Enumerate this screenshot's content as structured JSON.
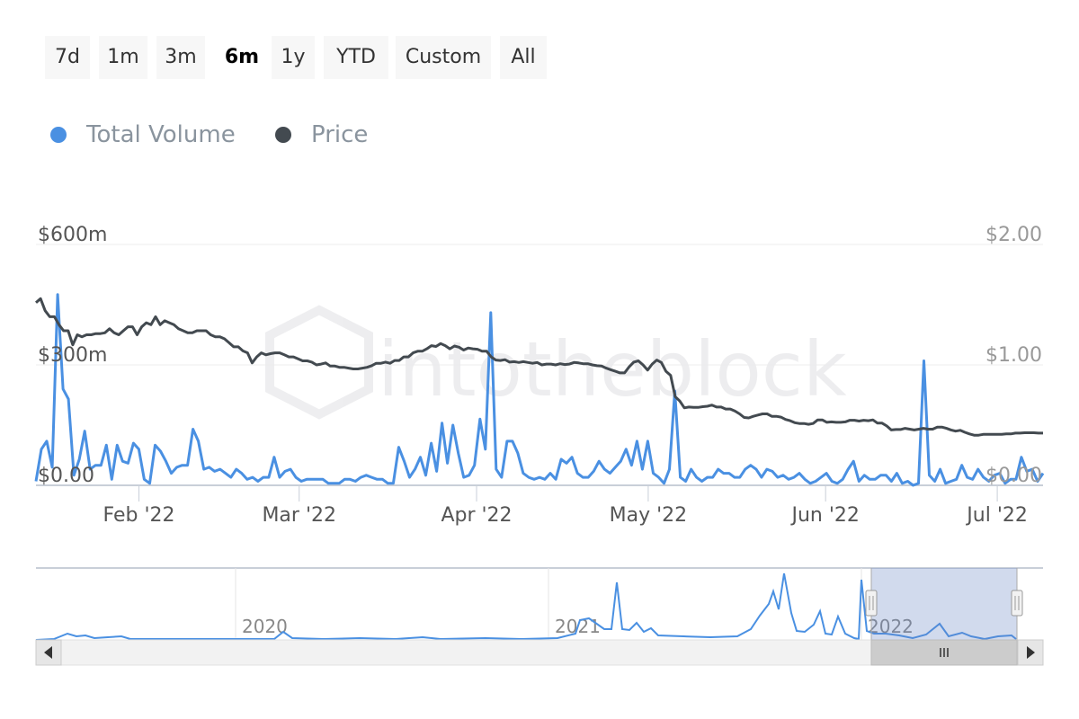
{
  "range_selector": {
    "buttons": [
      {
        "label": "7d",
        "selected": false
      },
      {
        "label": "1m",
        "selected": false
      },
      {
        "label": "3m",
        "selected": false
      },
      {
        "label": "6m",
        "selected": true
      },
      {
        "label": "1y",
        "selected": false
      },
      {
        "label": "YTD",
        "selected": false
      },
      {
        "label": "Custom",
        "selected": false
      },
      {
        "label": "All",
        "selected": false
      }
    ]
  },
  "legend": {
    "items": [
      {
        "label": "Total Volume",
        "color": "#4a90e2",
        "icon": "circle-icon"
      },
      {
        "label": "Price",
        "color": "#434a50",
        "icon": "circle-icon"
      }
    ]
  },
  "watermark": "intotheblock",
  "chart_data": {
    "type": "line",
    "x_range": [
      "2022-01-14",
      "2022-07-09"
    ],
    "left_axis": {
      "ticks": [
        "$0.00",
        "$300m",
        "$600m"
      ],
      "range": [
        0,
        600
      ],
      "unit": "$m"
    },
    "right_axis": {
      "ticks": [
        "$0.00",
        "$1.00",
        "$2.00"
      ],
      "range": [
        0,
        2
      ]
    },
    "x_ticks": [
      "Feb '22",
      "Mar '22",
      "Apr '22",
      "May '22",
      "Jun '22",
      "Jul '22"
    ],
    "grid": true,
    "legend_position": "top-left",
    "series": [
      {
        "name": "Total Volume",
        "axis": "left",
        "color": "#4a90e2",
        "values": [
          10,
          90,
          110,
          45,
          475,
          240,
          215,
          25,
          65,
          135,
          40,
          50,
          50,
          100,
          15,
          100,
          60,
          55,
          105,
          90,
          15,
          5,
          100,
          85,
          60,
          30,
          45,
          50,
          50,
          140,
          110,
          40,
          45,
          35,
          40,
          30,
          20,
          40,
          30,
          15,
          20,
          10,
          20,
          20,
          70,
          20,
          35,
          40,
          20,
          10,
          15,
          15,
          15,
          15,
          5,
          5,
          5,
          15,
          15,
          10,
          20,
          25,
          20,
          15,
          15,
          5,
          5,
          95,
          60,
          20,
          40,
          70,
          25,
          105,
          35,
          155,
          55,
          150,
          80,
          20,
          25,
          50,
          165,
          90,
          430,
          40,
          20,
          110,
          110,
          80,
          30,
          20,
          15,
          20,
          15,
          30,
          15,
          65,
          55,
          70,
          30,
          20,
          20,
          35,
          60,
          40,
          30,
          45,
          60,
          90,
          50,
          110,
          40,
          110,
          30,
          20,
          5,
          40,
          235,
          20,
          10,
          40,
          20,
          10,
          20,
          20,
          40,
          30,
          30,
          20,
          20,
          40,
          50,
          40,
          20,
          40,
          35,
          20,
          25,
          15,
          20,
          30,
          15,
          5,
          10,
          20,
          30,
          10,
          5,
          15,
          40,
          60,
          10,
          25,
          15,
          15,
          25,
          25,
          10,
          30,
          5,
          10,
          0,
          5,
          310,
          25,
          10,
          40,
          5,
          10,
          15,
          50,
          20,
          15,
          40,
          20,
          10,
          25,
          30,
          5,
          15,
          15,
          70,
          35,
          40,
          10,
          30
        ]
      },
      {
        "name": "Price",
        "axis": "left",
        "color": "#434a50",
        "values": [
          455,
          465,
          435,
          420,
          420,
          400,
          385,
          385,
          350,
          375,
          370,
          375,
          375,
          378,
          378,
          380,
          390,
          380,
          375,
          385,
          395,
          395,
          375,
          395,
          405,
          400,
          420,
          400,
          410,
          405,
          400,
          390,
          385,
          380,
          380,
          385,
          385,
          385,
          375,
          370,
          370,
          365,
          355,
          345,
          345,
          335,
          330,
          305,
          320,
          330,
          325,
          328,
          330,
          330,
          325,
          320,
          320,
          315,
          310,
          310,
          307,
          300,
          302,
          305,
          297,
          297,
          294,
          294,
          292,
          290,
          290,
          292,
          294,
          298,
          304,
          304,
          307,
          304,
          311,
          311,
          320,
          320,
          330,
          334,
          334,
          340,
          348,
          346,
          353,
          348,
          340,
          347,
          344,
          337,
          342,
          340,
          339,
          334,
          334,
          320,
          312,
          311,
          313,
          307,
          308,
          306,
          308,
          306,
          304,
          306,
          300,
          302,
          302,
          300,
          303,
          301,
          302,
          306,
          305,
          303,
          303,
          300,
          298,
          297,
          292,
          288,
          284,
          280,
          280,
          295,
          307,
          310,
          300,
          287,
          302,
          312,
          306,
          284,
          274,
          221,
          210,
          193,
          195,
          194,
          194,
          196,
          197,
          200,
          195,
          195,
          190,
          190,
          185,
          178,
          169,
          168,
          172,
          175,
          178,
          178,
          172,
          172,
          170,
          164,
          161,
          156,
          154,
          154,
          152,
          154,
          163,
          163,
          157,
          158,
          157,
          157,
          158,
          162,
          162,
          160,
          162,
          161,
          163,
          155,
          155,
          148,
          138,
          139,
          139,
          142,
          140,
          138,
          140,
          142,
          140,
          140,
          145,
          145,
          142,
          138,
          135,
          137,
          132,
          128,
          125,
          125,
          127,
          127,
          127,
          127,
          127,
          128,
          128,
          130,
          130,
          131,
          131,
          131,
          130,
          130
        ]
      }
    ]
  },
  "navigator": {
    "year_labels": [
      "2020",
      "2021",
      "2022"
    ],
    "scroll_handle_icon": "grip-icon",
    "left_arrow_icon": "arrow-left-icon",
    "right_arrow_icon": "arrow-right-icon"
  }
}
